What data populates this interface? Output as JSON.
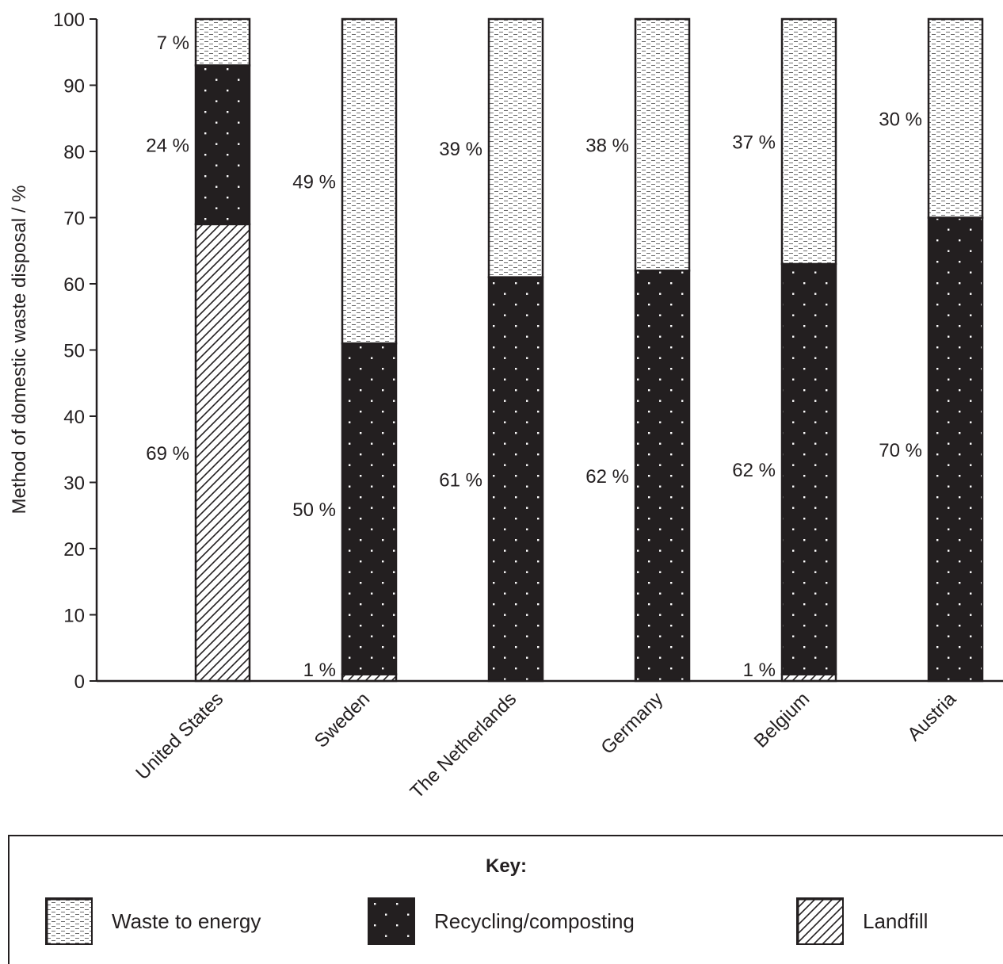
{
  "chart_data": {
    "type": "bar",
    "stacked": true,
    "title": "",
    "xlabel": "",
    "ylabel": "Method of domestic waste disposal / %",
    "ylim": [
      0,
      100
    ],
    "yticks": [
      0,
      10,
      20,
      30,
      40,
      50,
      60,
      70,
      80,
      90,
      100
    ],
    "grid": false,
    "categories": [
      "United States",
      "Sweden",
      "The Netherlands",
      "Germany",
      "Belgium",
      "Austria"
    ],
    "series": [
      {
        "name": "Landfill",
        "pattern": "diagonal-hatch",
        "values": [
          69,
          1,
          0,
          0,
          1,
          0
        ],
        "labels": [
          "69 %",
          "1 %",
          "",
          "",
          "1 %",
          ""
        ]
      },
      {
        "name": "Recycling/composting",
        "pattern": "black-dots",
        "values": [
          24,
          50,
          61,
          62,
          62,
          70
        ],
        "labels": [
          "24 %",
          "50 %",
          "61 %",
          "62 %",
          "62 %",
          "70 %"
        ]
      },
      {
        "name": "Waste to energy",
        "pattern": "dashed-light",
        "values": [
          7,
          49,
          39,
          38,
          37,
          30
        ],
        "labels": [
          "7 %",
          "49 %",
          "39 %",
          "38 %",
          "37 %",
          "30 %"
        ]
      }
    ],
    "legend": {
      "title": "Key:",
      "position": "bottom",
      "items": [
        "Waste to energy",
        "Recycling/composting",
        "Landfill"
      ]
    },
    "colors": {
      "ink": "#231f20",
      "fill_light": "#ffffff"
    }
  }
}
